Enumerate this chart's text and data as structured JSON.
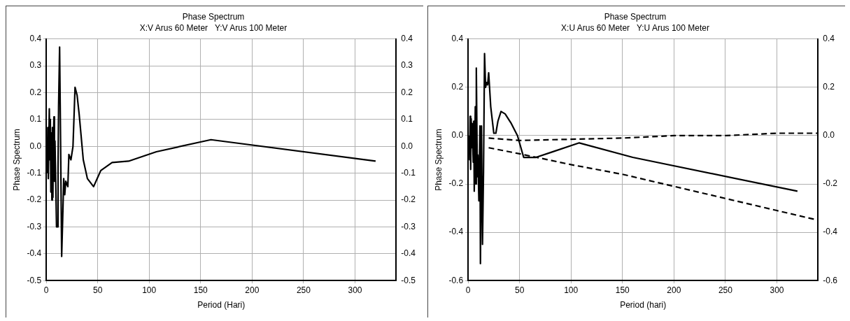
{
  "chart_data": [
    {
      "type": "line",
      "title": "Phase Spectrum",
      "subtitle": "X:V Arus 60 Meter   Y:V Arus 100 Meter",
      "xlabel": "Period (Hari)",
      "ylabel": "Phase Spectrum",
      "xlim": [
        0,
        340
      ],
      "xticks": [
        0,
        50,
        100,
        150,
        200,
        250,
        300
      ],
      "ylim": [
        -0.5,
        0.4
      ],
      "yticks": [
        -0.5,
        -0.4,
        -0.3,
        -0.2,
        -0.1,
        {
          "value": 0,
          "label": "0.0"
        },
        0.1,
        0.2,
        0.3,
        0.4
      ],
      "y2lim": [
        -0.5,
        0.4
      ],
      "y2ticks": [
        -0.5,
        -0.4,
        -0.3,
        -0.2,
        -0.1,
        {
          "value": 0,
          "label": "0.0"
        },
        0.1,
        0.2,
        0.3,
        0.4
      ],
      "grid": true,
      "legend": false,
      "marker": "none",
      "series": [
        {
          "color": "#000000",
          "line_style": "solid",
          "x": [
            1,
            1.5,
            2,
            3,
            3.5,
            4,
            4.5,
            5,
            5.5,
            6,
            6.5,
            7,
            7.5,
            8,
            8.5,
            9,
            10,
            11,
            11.5,
            12,
            13,
            14,
            15,
            16,
            17,
            18,
            19,
            21,
            22,
            24,
            26,
            28,
            30,
            32,
            36,
            40,
            46,
            53,
            64,
            80,
            107,
            160,
            320
          ],
          "values": [
            -0.1,
            0.07,
            -0.12,
            0.14,
            -0.05,
            0.1,
            -0.17,
            0.05,
            -0.2,
            0.07,
            -0.19,
            0.02,
            0.11,
            -0.13,
            0.02,
            -0.08,
            -0.3,
            -0.3,
            -0.08,
            0.15,
            0.37,
            0.0,
            -0.41,
            -0.27,
            -0.12,
            -0.18,
            -0.13,
            -0.15,
            -0.03,
            -0.05,
            0.0,
            0.22,
            0.19,
            0.12,
            -0.05,
            -0.12,
            -0.15,
            -0.09,
            -0.06,
            -0.055,
            -0.02,
            0.025,
            -0.055
          ]
        }
      ]
    },
    {
      "type": "line",
      "title": "Phase Spectrum",
      "subtitle": "X:U Arus 60 Meter   Y:U Arus 100 Meter",
      "xlabel": "Period (hari)",
      "ylabel": "Phase Spectrum",
      "xlim": [
        0,
        340
      ],
      "xticks": [
        0,
        50,
        100,
        150,
        200,
        250,
        300
      ],
      "ylim": [
        -0.6,
        0.4
      ],
      "yticks": [
        -0.6,
        -0.4,
        -0.2,
        {
          "value": 0,
          "label": "0.0"
        },
        0.2,
        0.4
      ],
      "y2lim": [
        -0.6,
        0.4
      ],
      "y2ticks": [
        -0.6,
        -0.4,
        -0.2,
        {
          "value": 0,
          "label": "0.0"
        },
        0.2,
        0.4
      ],
      "grid": true,
      "legend": false,
      "marker": "none",
      "series": [
        {
          "color": "#000000",
          "line_style": "solid",
          "x": [
            1,
            1.5,
            2,
            2.5,
            3,
            3.5,
            4,
            5,
            5.5,
            6,
            7,
            7.5,
            8,
            9,
            9.5,
            10.5,
            11.5,
            12,
            13,
            14,
            15,
            16,
            17,
            18,
            19,
            20,
            22,
            25,
            27,
            29,
            32,
            36,
            42,
            48,
            54,
            66,
            80,
            108,
            160,
            320
          ],
          "values": [
            0.0,
            -0.1,
            0.08,
            -0.14,
            0.07,
            -0.05,
            0.05,
            -0.11,
            0.06,
            -0.23,
            0.12,
            -0.2,
            0.28,
            -0.17,
            -0.08,
            -0.27,
            0.04,
            -0.53,
            0.04,
            -0.45,
            -0.15,
            0.34,
            0.2,
            0.22,
            0.21,
            0.26,
            0.12,
            0.01,
            0.01,
            0.06,
            0.1,
            0.09,
            0.05,
            0.0,
            -0.09,
            -0.09,
            -0.07,
            -0.03,
            -0.09,
            -0.23
          ]
        },
        {
          "color": "#000000",
          "line_style": "dashed",
          "x": [
            20,
            50,
            100,
            150,
            200,
            250,
            300,
            340
          ],
          "values": [
            -0.01,
            -0.02,
            -0.015,
            -0.01,
            0.0,
            0.0,
            0.01,
            0.01
          ]
        },
        {
          "color": "#000000",
          "line_style": "dashed",
          "x": [
            20,
            50,
            100,
            150,
            200,
            250,
            300,
            340
          ],
          "values": [
            -0.05,
            -0.075,
            -0.12,
            -0.16,
            -0.21,
            -0.26,
            -0.31,
            -0.35
          ]
        }
      ]
    }
  ]
}
